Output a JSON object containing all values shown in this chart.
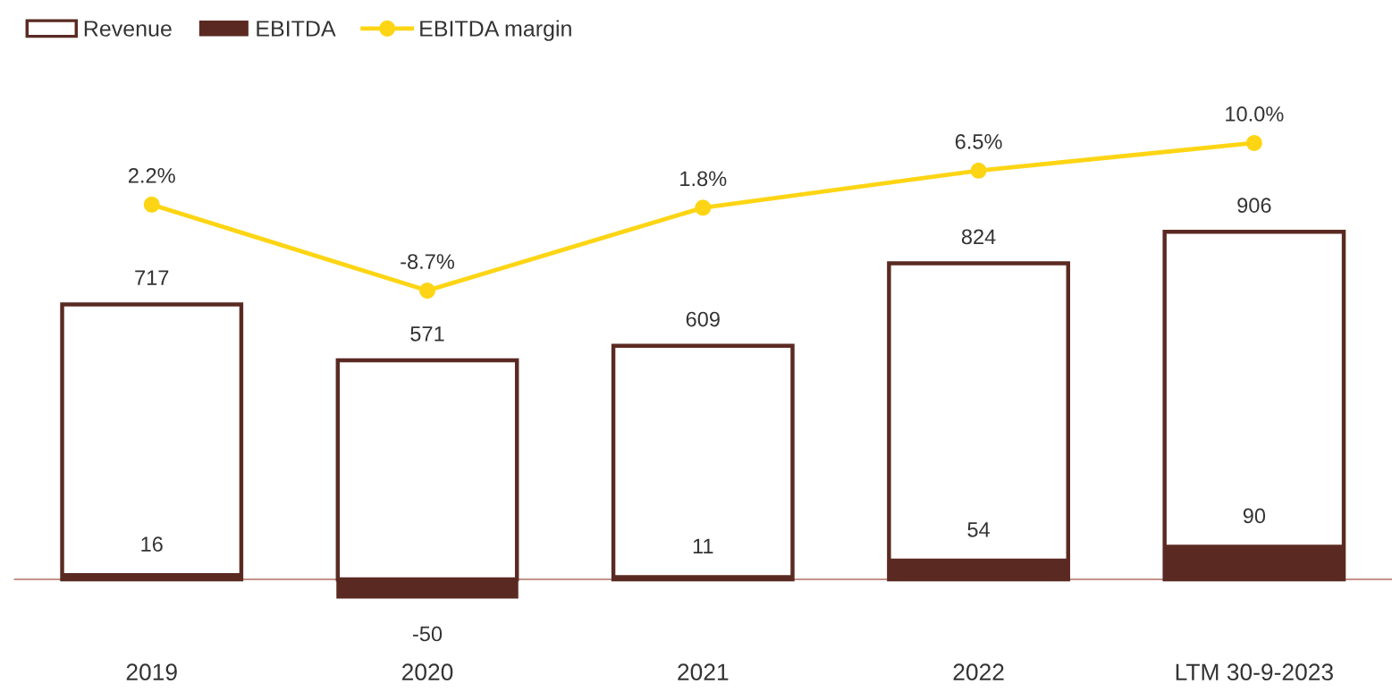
{
  "chart_data": [
    {
      "type": "bar",
      "categories": [
        "2019",
        "2020",
        "2021",
        "2022",
        "LTM 30-9-2023"
      ],
      "series": [
        {
          "name": "Revenue",
          "color": "#5a2a22",
          "values": [
            717,
            571,
            609,
            824,
            906
          ]
        },
        {
          "name": "EBITDA",
          "color": "#5a2a22",
          "values": [
            16,
            -50,
            11,
            54,
            90
          ]
        }
      ],
      "ref_lines": [
        {
          "axis": "y",
          "value": 0,
          "color": "#b07060"
        }
      ],
      "data_labels": true,
      "tick_labels": "x",
      "legend": "top left"
    },
    {
      "type": "line",
      "categories": [
        null,
        null,
        null,
        null,
        null
      ],
      "series": [
        {
          "name": "EBITDA margin",
          "color": "#fdd514",
          "values": [
            2.2,
            -8.7,
            1.8,
            6.5,
            10.0
          ],
          "value_labels": [
            "2.2%",
            "-8.7%",
            "1.8%",
            "6.5%",
            "10.0%"
          ]
        }
      ],
      "tick_labels": false,
      "legend": "top left",
      "marker": "circle"
    }
  ]
}
